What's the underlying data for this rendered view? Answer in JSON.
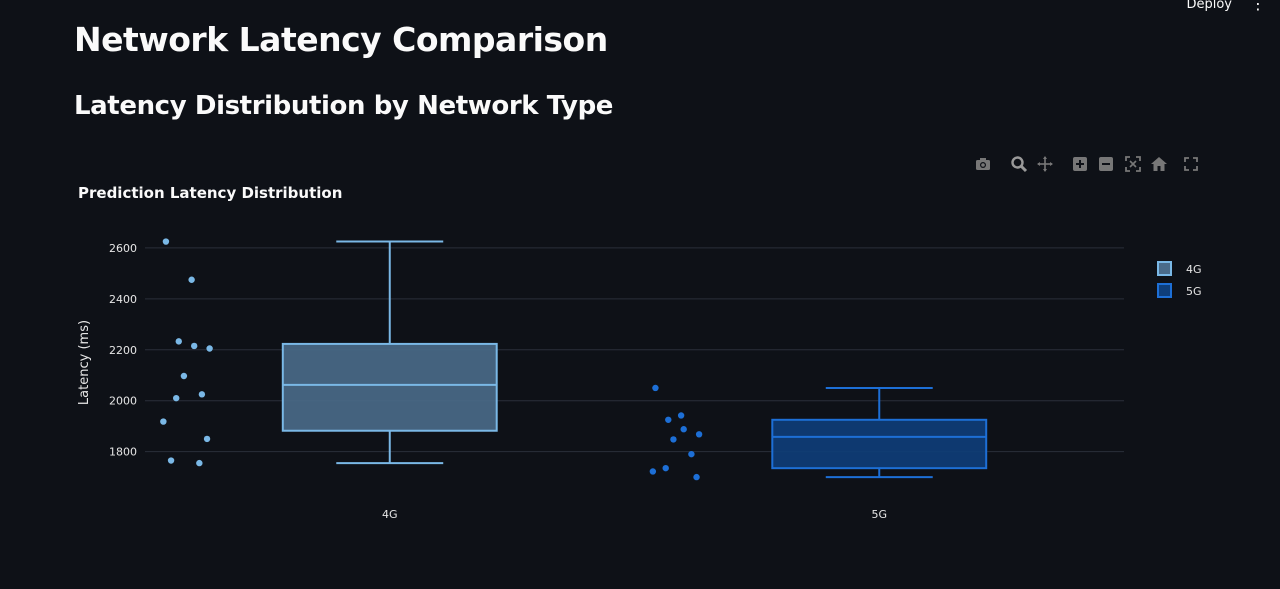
{
  "header": {
    "deploy_label": "Deploy",
    "menu_icon": "kebab-menu-icon"
  },
  "page": {
    "title": "Network Latency Comparison",
    "section_title": "Latency Distribution by Network Type"
  },
  "modebar": {
    "icons": [
      "camera-icon",
      "zoom-icon",
      "pan-icon",
      "zoom-in-icon",
      "zoom-out-icon",
      "autoscale-icon",
      "reset-axes-icon",
      "fullscreen-icon"
    ]
  },
  "chart_data": {
    "type": "box",
    "title": "Prediction Latency Distribution",
    "xlabel": "",
    "ylabel": "Latency (ms)",
    "ylim": [
      1610,
      2690
    ],
    "yticks": [
      1800,
      2000,
      2200,
      2400,
      2600
    ],
    "categories": [
      "4G",
      "5G"
    ],
    "grid": true,
    "legend_position": "top-right",
    "series": [
      {
        "name": "4G",
        "color": "#7ab8e6",
        "fill": "#4a6b8a",
        "min": 1755,
        "q1": 1882,
        "median": 2062,
        "q3": 2223,
        "max": 2625,
        "points": [
          2625,
          2475,
          2233,
          2215,
          2205,
          2097,
          2025,
          2010,
          1918,
          1850,
          1765,
          1755
        ]
      },
      {
        "name": "5G",
        "color": "#1d6fd6",
        "fill": "#0e3e7a",
        "min": 1700,
        "q1": 1735,
        "median": 1858,
        "q3": 1925,
        "max": 2050,
        "points": [
          2050,
          1942,
          1925,
          1888,
          1868,
          1848,
          1790,
          1735,
          1722,
          1700
        ]
      }
    ]
  }
}
